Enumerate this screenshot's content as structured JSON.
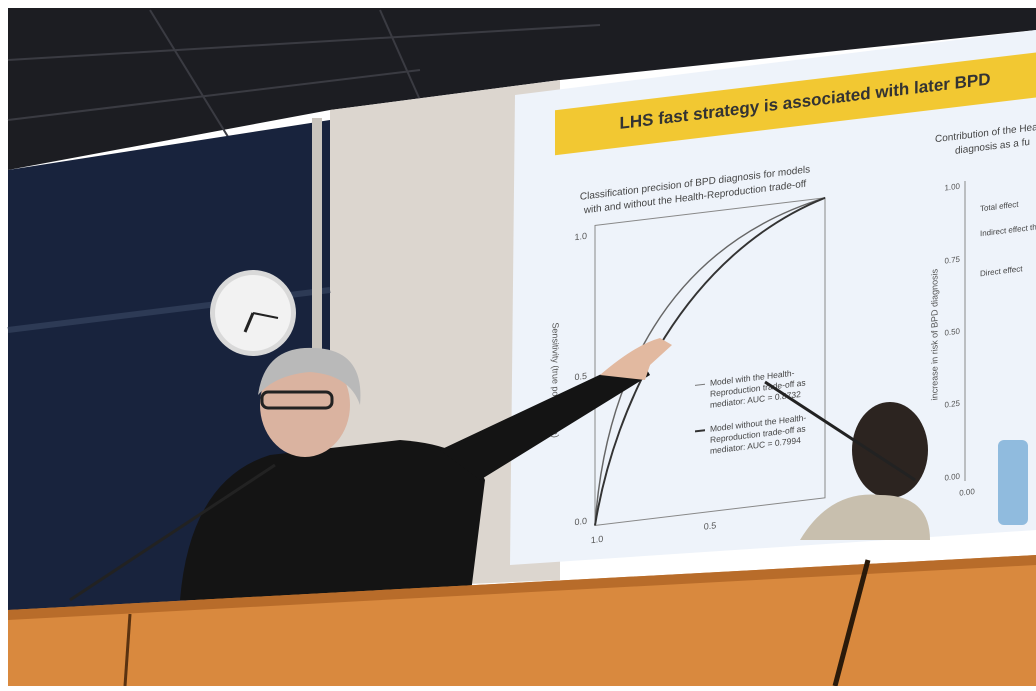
{
  "slide": {
    "title": "LHS fast strategy is associated with later BPD",
    "left_panel": {
      "title_lines": [
        "Classification precision of BPD diagnosis for models",
        "with and without the Health-Reproduction trade-off"
      ],
      "y_axis_label": "Sensitivity (true positive rate)",
      "y_ticks": [
        "1.0",
        "0.5",
        "0.0"
      ],
      "x_ticks": [
        "1.0",
        "0.5"
      ],
      "legend": [
        [
          "Model with the Health-",
          "Reproduction trade-off as",
          "mediator: AUC = 0.8732"
        ],
        [
          "Model without the Health-",
          "Reproduction trade-off as",
          "mediator: AUC = 0.7994"
        ]
      ]
    },
    "right_panel": {
      "title_lines": [
        "Contribution of the Health-",
        "diagnosis as a fu"
      ],
      "y_axis_label": "increase in risk of BPD diagnosis",
      "y_ticks": [
        "1.00",
        "0.75",
        "0.50",
        "0.25",
        "0.00"
      ],
      "x_ticks": [
        "0.00"
      ],
      "legend": [
        "Total effect",
        "Indirect effect through the Health-Reproduction",
        "Direct effect"
      ]
    }
  }
}
